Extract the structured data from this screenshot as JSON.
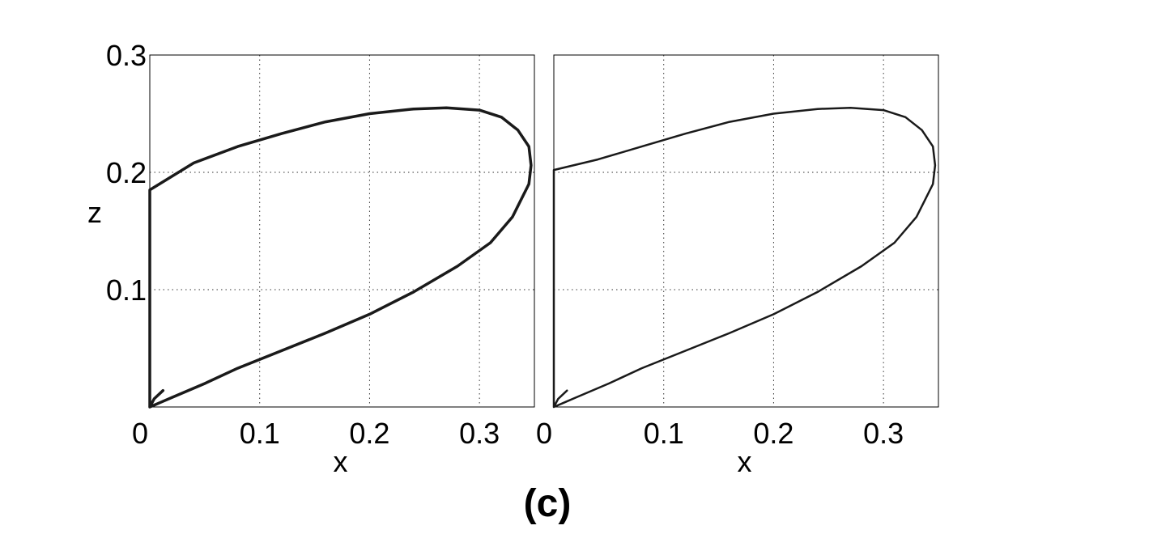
{
  "chart_data": [
    {
      "type": "line",
      "panel": "left",
      "xlabel": "x",
      "ylabel": "z",
      "xlim": [
        0,
        0.35
      ],
      "ylim": [
        0,
        0.3
      ],
      "xticks": [
        "0",
        "0.1",
        "0.2",
        "0.3"
      ],
      "yticks": [
        "0.1",
        "0.2",
        "0.3"
      ],
      "grid": true,
      "series": [
        {
          "color": "#1a1a1a",
          "x": [
            0.0,
            0.005,
            0.01,
            0.02,
            0.05,
            0.08,
            0.12,
            0.16,
            0.2,
            0.24,
            0.28,
            0.31,
            0.33,
            0.345,
            0.347,
            0.345,
            0.335,
            0.32,
            0.3,
            0.27,
            0.24,
            0.2,
            0.16,
            0.12,
            0.08,
            0.04,
            0.0,
            0.0,
            0.0,
            0.004,
            0.012
          ],
          "y": [
            0.0,
            0.002,
            0.004,
            0.008,
            0.02,
            0.033,
            0.048,
            0.063,
            0.079,
            0.098,
            0.12,
            0.14,
            0.162,
            0.19,
            0.206,
            0.222,
            0.236,
            0.247,
            0.253,
            0.255,
            0.254,
            0.25,
            0.243,
            0.233,
            0.222,
            0.208,
            0.185,
            0.1,
            0.0,
            0.007,
            0.014
          ]
        }
      ]
    },
    {
      "type": "line",
      "panel": "right",
      "xlabel": "x",
      "ylabel": "",
      "xlim": [
        0,
        0.35
      ],
      "ylim": [
        0,
        0.3
      ],
      "xticks": [
        "0",
        "0.1",
        "0.2",
        "0.3"
      ],
      "yticks": [],
      "grid": true,
      "series": [
        {
          "color": "#1a1a1a",
          "x": [
            0.0,
            0.005,
            0.01,
            0.02,
            0.05,
            0.08,
            0.12,
            0.16,
            0.2,
            0.24,
            0.28,
            0.31,
            0.33,
            0.345,
            0.347,
            0.345,
            0.335,
            0.32,
            0.3,
            0.27,
            0.24,
            0.2,
            0.16,
            0.12,
            0.08,
            0.04,
            0.0,
            0.0,
            0.0,
            0.004,
            0.012
          ],
          "y": [
            0.0,
            0.002,
            0.004,
            0.008,
            0.02,
            0.033,
            0.048,
            0.063,
            0.079,
            0.098,
            0.12,
            0.14,
            0.162,
            0.19,
            0.206,
            0.222,
            0.236,
            0.247,
            0.253,
            0.255,
            0.254,
            0.25,
            0.243,
            0.233,
            0.222,
            0.211,
            0.202,
            0.1,
            0.0,
            0.007,
            0.014
          ]
        }
      ]
    }
  ],
  "caption": "(c)"
}
